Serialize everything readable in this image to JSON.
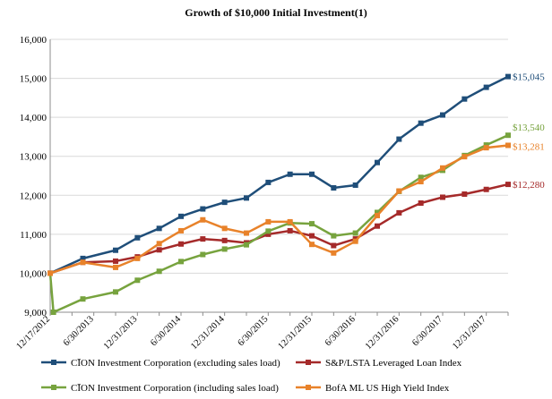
{
  "chart_data": {
    "type": "line",
    "title": "Growth of $10,000 Initial Investment(1)",
    "xlabel": "",
    "ylabel": "",
    "ylim": [
      9000,
      16000
    ],
    "yticks": [
      9000,
      10000,
      11000,
      12000,
      13000,
      14000,
      15000,
      16000
    ],
    "ytick_labels": [
      "9,000",
      "10,000",
      "11,000",
      "12,000",
      "13,000",
      "14,000",
      "15,000",
      "16,000"
    ],
    "x_tick_labels": [
      "12/17/2012",
      "6/30/2013",
      "12/31/2013",
      "6/30/2014",
      "12/31/2014",
      "6/30/2015",
      "12/31/2015",
      "6/30/2016",
      "12/31/2016",
      "6/30/2017",
      "12/31/2017"
    ],
    "x_points": 21,
    "grid": "horizontal",
    "legend_position": "bottom",
    "series": [
      {
        "name": "CĪON Investment Corporation (excluding sales load)",
        "color": "#1f4e79",
        "marker": "square",
        "end_label": "$15,045",
        "x": [
          0,
          1.5,
          3,
          4,
          5,
          6,
          7,
          8,
          9,
          10,
          11,
          12,
          13,
          14,
          15,
          16,
          17,
          18,
          19,
          20,
          21
        ],
        "values": [
          10000,
          10380,
          10590,
          10910,
          11150,
          11460,
          11650,
          11820,
          11930,
          12330,
          12540,
          12540,
          12190,
          12260,
          12840,
          13440,
          13850,
          14060,
          14470,
          14770,
          15045
        ]
      },
      {
        "name": "S&P/LSTA Leveraged Loan Index",
        "color": "#a52a2a",
        "marker": "square",
        "end_label": "$12,280",
        "x": [
          0,
          1.5,
          3,
          4,
          5,
          6,
          7,
          8,
          9,
          10,
          11,
          12,
          13,
          14,
          15,
          16,
          17,
          18,
          19,
          20,
          21
        ],
        "values": [
          10000,
          10280,
          10310,
          10420,
          10600,
          10750,
          10880,
          10840,
          10780,
          11000,
          11090,
          10960,
          10710,
          10880,
          11210,
          11550,
          11800,
          11950,
          12030,
          12150,
          12280
        ]
      },
      {
        "name": "CĪON Investment Corporation (including sales load)",
        "color": "#77a33e",
        "marker": "square",
        "end_label": "$13,540",
        "x": [
          0,
          0.15,
          1.5,
          3,
          4,
          5,
          6,
          7,
          8,
          9,
          10,
          11,
          12,
          13,
          14,
          15,
          16,
          17,
          18,
          19,
          20,
          21
        ],
        "values": [
          10000,
          9000,
          9340,
          9520,
          9820,
          10050,
          10300,
          10480,
          10620,
          10730,
          11080,
          11290,
          11270,
          10960,
          11030,
          11560,
          12100,
          12460,
          12640,
          13020,
          13290,
          13540
        ]
      },
      {
        "name": "BofA ML US High Yield Index",
        "color": "#e8822a",
        "marker": "square",
        "end_label": "$13,281",
        "x": [
          0,
          1.5,
          3,
          4,
          5,
          6,
          7,
          8,
          9,
          10,
          11,
          12,
          13,
          14,
          15,
          16,
          17,
          18,
          19,
          20,
          21
        ],
        "values": [
          10000,
          10280,
          10150,
          10380,
          10760,
          11090,
          11370,
          11150,
          11030,
          11320,
          11320,
          10740,
          10520,
          10820,
          11480,
          12110,
          12350,
          12700,
          12990,
          13220,
          13281
        ]
      }
    ]
  }
}
